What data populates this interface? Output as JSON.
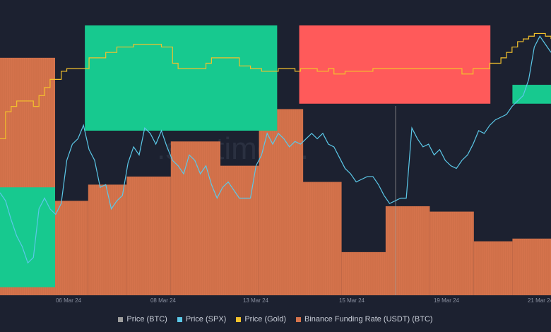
{
  "chart_data": {
    "type": "bar",
    "title": "",
    "watermark": ".santiment.",
    "x_ticks": [
      "06 Mar 24",
      "08 Mar 24",
      "13 Mar 24",
      "15 Mar 24",
      "19 Mar 24",
      "21 Mar 24"
    ],
    "legend_position": "bottom",
    "grid": false,
    "colors": {
      "background": "#1c2130",
      "btc": "#9e9e9e",
      "spx": "#5bc8e8",
      "gold": "#f3c12c",
      "funding": "#d5734c",
      "zone_green": "#17c98f",
      "zone_red": "#ff5a5a"
    },
    "legend": [
      {
        "name": "Price (BTC)",
        "color": "#9e9e9e"
      },
      {
        "name": "Price (SPX)",
        "color": "#5bc8e8"
      },
      {
        "name": "Price (Gold)",
        "color": "#f3c12c"
      },
      {
        "name": "Binance Funding Rate (USDT) (BTC)",
        "color": "#d5734c"
      }
    ],
    "funding_levels": [
      {
        "label": "seg-1",
        "start": 0.0,
        "end": 0.1,
        "value": 0.88
      },
      {
        "label": "seg-2",
        "start": 0.1,
        "end": 0.16,
        "value": 0.35
      },
      {
        "label": "seg-3",
        "start": 0.16,
        "end": 0.23,
        "value": 0.41
      },
      {
        "label": "seg-4",
        "start": 0.23,
        "end": 0.31,
        "value": 0.44
      },
      {
        "label": "seg-5",
        "start": 0.31,
        "end": 0.4,
        "value": 0.57
      },
      {
        "label": "seg-6",
        "start": 0.4,
        "end": 0.47,
        "value": 0.48
      },
      {
        "label": "seg-7",
        "start": 0.47,
        "end": 0.55,
        "value": 0.69
      },
      {
        "label": "seg-8",
        "start": 0.55,
        "end": 0.62,
        "value": 0.42
      },
      {
        "label": "seg-9",
        "start": 0.62,
        "end": 0.7,
        "value": 0.16
      },
      {
        "label": "seg-10",
        "start": 0.7,
        "end": 0.78,
        "value": 0.33
      },
      {
        "label": "seg-11",
        "start": 0.78,
        "end": 0.86,
        "value": 0.31
      },
      {
        "label": "seg-12",
        "start": 0.86,
        "end": 0.93,
        "value": 0.2
      },
      {
        "label": "seg-13",
        "start": 0.93,
        "end": 1.0,
        "value": 0.21
      }
    ],
    "spx_series": [
      0.38,
      0.35,
      0.28,
      0.22,
      0.18,
      0.12,
      0.14,
      0.32,
      0.36,
      0.32,
      0.3,
      0.34,
      0.5,
      0.56,
      0.58,
      0.63,
      0.54,
      0.5,
      0.4,
      0.41,
      0.32,
      0.35,
      0.37,
      0.49,
      0.55,
      0.52,
      0.62,
      0.6,
      0.56,
      0.61,
      0.55,
      0.5,
      0.48,
      0.45,
      0.52,
      0.5,
      0.45,
      0.48,
      0.41,
      0.36,
      0.4,
      0.42,
      0.39,
      0.36,
      0.36,
      0.36,
      0.48,
      0.52,
      0.6,
      0.56,
      0.6,
      0.58,
      0.55,
      0.57,
      0.56,
      0.58,
      0.6,
      0.58,
      0.6,
      0.56,
      0.55,
      0.51,
      0.47,
      0.45,
      0.42,
      0.43,
      0.44,
      0.44,
      0.41,
      0.37,
      0.34,
      0.35,
      0.36,
      0.36,
      0.62,
      0.58,
      0.55,
      0.56,
      0.52,
      0.54,
      0.5,
      0.48,
      0.47,
      0.5,
      0.52,
      0.56,
      0.61,
      0.6,
      0.63,
      0.65,
      0.66,
      0.67,
      0.7,
      0.72,
      0.74,
      0.8,
      0.92,
      0.96,
      0.93,
      0.9
    ],
    "gold_series": [
      0.58,
      0.68,
      0.7,
      0.72,
      0.72,
      0.72,
      0.7,
      0.74,
      0.77,
      0.8,
      0.8,
      0.83,
      0.84,
      0.84,
      0.84,
      0.84,
      0.88,
      0.88,
      0.88,
      0.9,
      0.9,
      0.92,
      0.92,
      0.92,
      0.93,
      0.93,
      0.93,
      0.93,
      0.93,
      0.92,
      0.92,
      0.86,
      0.84,
      0.84,
      0.84,
      0.84,
      0.84,
      0.86,
      0.88,
      0.88,
      0.88,
      0.88,
      0.88,
      0.85,
      0.85,
      0.84,
      0.84,
      0.83,
      0.83,
      0.83,
      0.84,
      0.84,
      0.84,
      0.83,
      0.84,
      0.84,
      0.84,
      0.83,
      0.83,
      0.84,
      0.82,
      0.82,
      0.83,
      0.83,
      0.83,
      0.83,
      0.83,
      0.84,
      0.84,
      0.84,
      0.84,
      0.84,
      0.84,
      0.84,
      0.84,
      0.84,
      0.84,
      0.84,
      0.84,
      0.84,
      0.84,
      0.84,
      0.84,
      0.82,
      0.82,
      0.84,
      0.84,
      0.84,
      0.86,
      0.86,
      0.88,
      0.9,
      0.92,
      0.94,
      0.95,
      0.96,
      0.97,
      0.97,
      0.96,
      0.95
    ],
    "zones": [
      {
        "label": "zone-green-1",
        "color": "#17c98f",
        "x0": 0.0,
        "x1": 0.1,
        "y0": 0.03,
        "y1": 0.4
      },
      {
        "label": "zone-green-2",
        "color": "#17c98f",
        "x0": 0.154,
        "x1": 0.503,
        "y0": 0.61,
        "y1": 1.0
      },
      {
        "label": "zone-red-1",
        "color": "#ff5a5a",
        "x0": 0.543,
        "x1": 0.89,
        "y0": 0.71,
        "y1": 1.0
      },
      {
        "label": "zone-green-3",
        "color": "#17c98f",
        "x0": 0.93,
        "x1": 1.0,
        "y0": 0.71,
        "y1": 0.78
      }
    ]
  }
}
